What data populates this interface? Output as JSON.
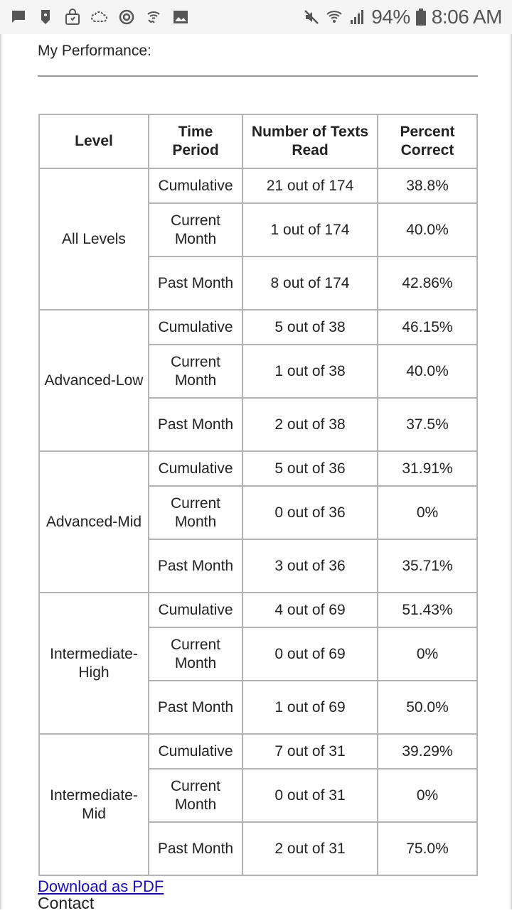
{
  "status_bar": {
    "left_icons": [
      "message-icon",
      "tag-icon",
      "lock-bag-icon",
      "cloud-refresh-icon",
      "sync-icon",
      "wifi-call-icon",
      "image-icon"
    ],
    "right_icons": [
      "mute-icon",
      "wifi-icon",
      "signal-icon",
      "battery-icon"
    ],
    "battery_percent": "94%",
    "time": "8:06 AM"
  },
  "page": {
    "heading": "My Performance:",
    "table": {
      "headers": {
        "level": "Level",
        "time_period": "Time Period",
        "texts_read": "Number of Texts Read",
        "percent_correct": "Percent Correct"
      },
      "groups": [
        {
          "level": "All Levels",
          "rows": [
            {
              "period": "Cumulative",
              "texts": "21 out of 174",
              "pct": "38.8%"
            },
            {
              "period": "Current Month",
              "texts": "1 out of 174",
              "pct": "40.0%"
            },
            {
              "period": "Past Month",
              "texts": "8 out of 174",
              "pct": "42.86%"
            }
          ]
        },
        {
          "level": "Advanced-Low",
          "rows": [
            {
              "period": "Cumulative",
              "texts": "5 out of 38",
              "pct": "46.15%"
            },
            {
              "period": "Current Month",
              "texts": "1 out of 38",
              "pct": "40.0%"
            },
            {
              "period": "Past Month",
              "texts": "2 out of 38",
              "pct": "37.5%"
            }
          ]
        },
        {
          "level": "Advanced-Mid",
          "rows": [
            {
              "period": "Cumulative",
              "texts": "5 out of 36",
              "pct": "31.91%"
            },
            {
              "period": "Current Month",
              "texts": "0 out of 36",
              "pct": "0%"
            },
            {
              "period": "Past Month",
              "texts": "3 out of 36",
              "pct": "35.71%"
            }
          ]
        },
        {
          "level": "Intermediate-High",
          "rows": [
            {
              "period": "Cumulative",
              "texts": "4 out of 69",
              "pct": "51.43%"
            },
            {
              "period": "Current Month",
              "texts": "0 out of 69",
              "pct": "0%"
            },
            {
              "period": "Past Month",
              "texts": "1 out of 69",
              "pct": "50.0%"
            }
          ]
        },
        {
          "level": "Intermediate-Mid",
          "rows": [
            {
              "period": "Cumulative",
              "texts": "7 out of 31",
              "pct": "39.29%"
            },
            {
              "period": "Current Month",
              "texts": "0 out of 31",
              "pct": "0%"
            },
            {
              "period": "Past Month",
              "texts": "2 out of 31",
              "pct": "75.0%"
            }
          ]
        }
      ]
    },
    "download_link": "Download as PDF",
    "contact": "Contact"
  },
  "colors": {
    "link": "#1a0dab",
    "table_border": "#b3b3b3",
    "status_icons": "#555555"
  }
}
